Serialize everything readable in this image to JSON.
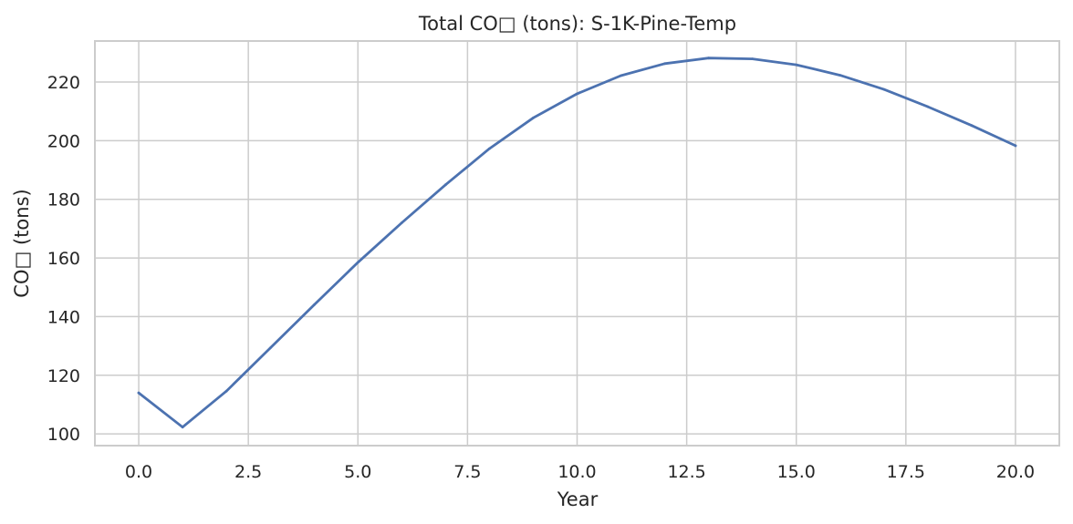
{
  "chart_data": {
    "type": "line",
    "title": "Total CO□ (tons): S-1K-Pine-Temp",
    "xlabel": "Year",
    "ylabel": "CO□ (tons)",
    "xlim": [
      -1.0,
      21.0
    ],
    "ylim": [
      96,
      234
    ],
    "xticks": [
      0.0,
      2.5,
      5.0,
      7.5,
      10.0,
      12.5,
      15.0,
      17.5,
      20.0
    ],
    "xtick_labels": [
      "0.0",
      "2.5",
      "5.0",
      "7.5",
      "10.0",
      "12.5",
      "15.0",
      "17.5",
      "20.0"
    ],
    "yticks": [
      100,
      120,
      140,
      160,
      180,
      200,
      220
    ],
    "ytick_labels": [
      "100",
      "120",
      "140",
      "160",
      "180",
      "200",
      "220"
    ],
    "grid": true,
    "series": [
      {
        "color": "#4c72b0",
        "x": [
          0,
          1,
          2,
          3,
          4,
          5,
          6,
          7,
          8,
          9,
          10,
          11,
          12,
          13,
          14,
          15,
          16,
          17,
          18,
          19,
          20
        ],
        "y": [
          114.0,
          102.3,
          114.6,
          129.3,
          144.0,
          158.5,
          172.0,
          185.0,
          197.3,
          207.8,
          216.0,
          222.2,
          226.3,
          228.2,
          227.9,
          225.9,
          222.3,
          217.5,
          211.6,
          205.2,
          198.3
        ]
      }
    ]
  }
}
